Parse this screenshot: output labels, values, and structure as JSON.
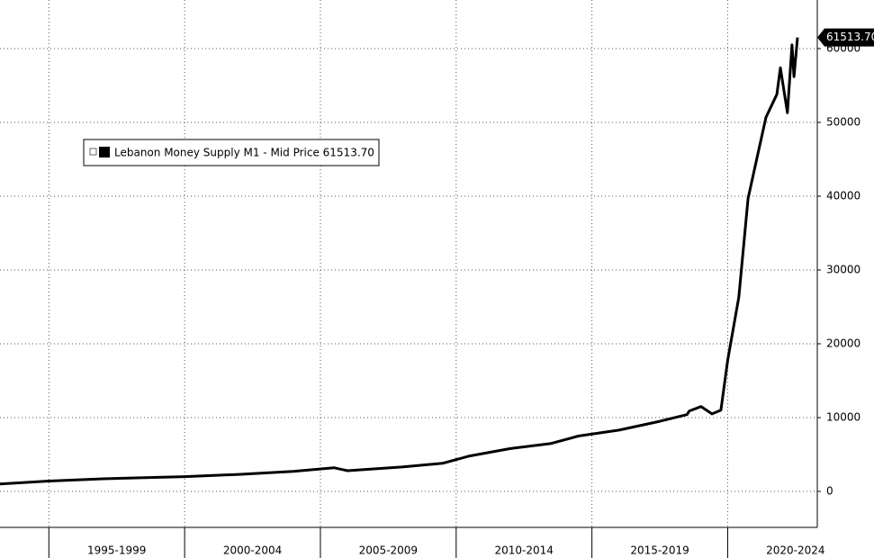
{
  "chart_data": {
    "type": "line",
    "x": [
      1993.2,
      1995,
      1997,
      1999,
      2000,
      2002,
      2004,
      2005.5,
      2006,
      2008,
      2009.5,
      2010.5,
      2012,
      2013.5,
      2014.5,
      2016,
      2017.5,
      2018.5,
      2018.59,
      2019.02,
      2019.42,
      2019.75,
      2020.0,
      2020.41,
      2020.75,
      2021.08,
      2021.41,
      2021.81,
      2021.94,
      2022.2,
      2022.37,
      2022.44,
      2022.57
    ],
    "series": [
      {
        "name": "Lebanon Money Supply M1 - Mid Price 61513.70",
        "color": "#000000",
        "values": [
          1000,
          1400,
          1700,
          1900,
          2000,
          2300,
          2700,
          3200,
          2800,
          3300,
          3800,
          4800,
          5800,
          6500,
          7500,
          8300,
          9500,
          10400,
          10900,
          11500,
          10500,
          11000,
          17800,
          26300,
          39700,
          45200,
          50700,
          53800,
          57400,
          51300,
          60500,
          56200,
          61513.7
        ],
        "last_label": "61513.70"
      }
    ],
    "xlim": [
      1993.2,
      2023.3
    ],
    "xticks": [
      {
        "value": 1995,
        "label": "1995-1999"
      },
      {
        "value": 2000,
        "label": "2000-2004"
      },
      {
        "value": 2005,
        "label": "2005-2009"
      },
      {
        "value": 2010,
        "label": "2010-2014"
      },
      {
        "value": 2015,
        "label": "2015-2019"
      },
      {
        "value": 2020,
        "label": "2020-2024"
      }
    ],
    "ylim": [
      -4880,
      66585
    ],
    "yticks": [
      0,
      10000,
      20000,
      30000,
      40000,
      50000,
      60000
    ],
    "grid": true
  }
}
